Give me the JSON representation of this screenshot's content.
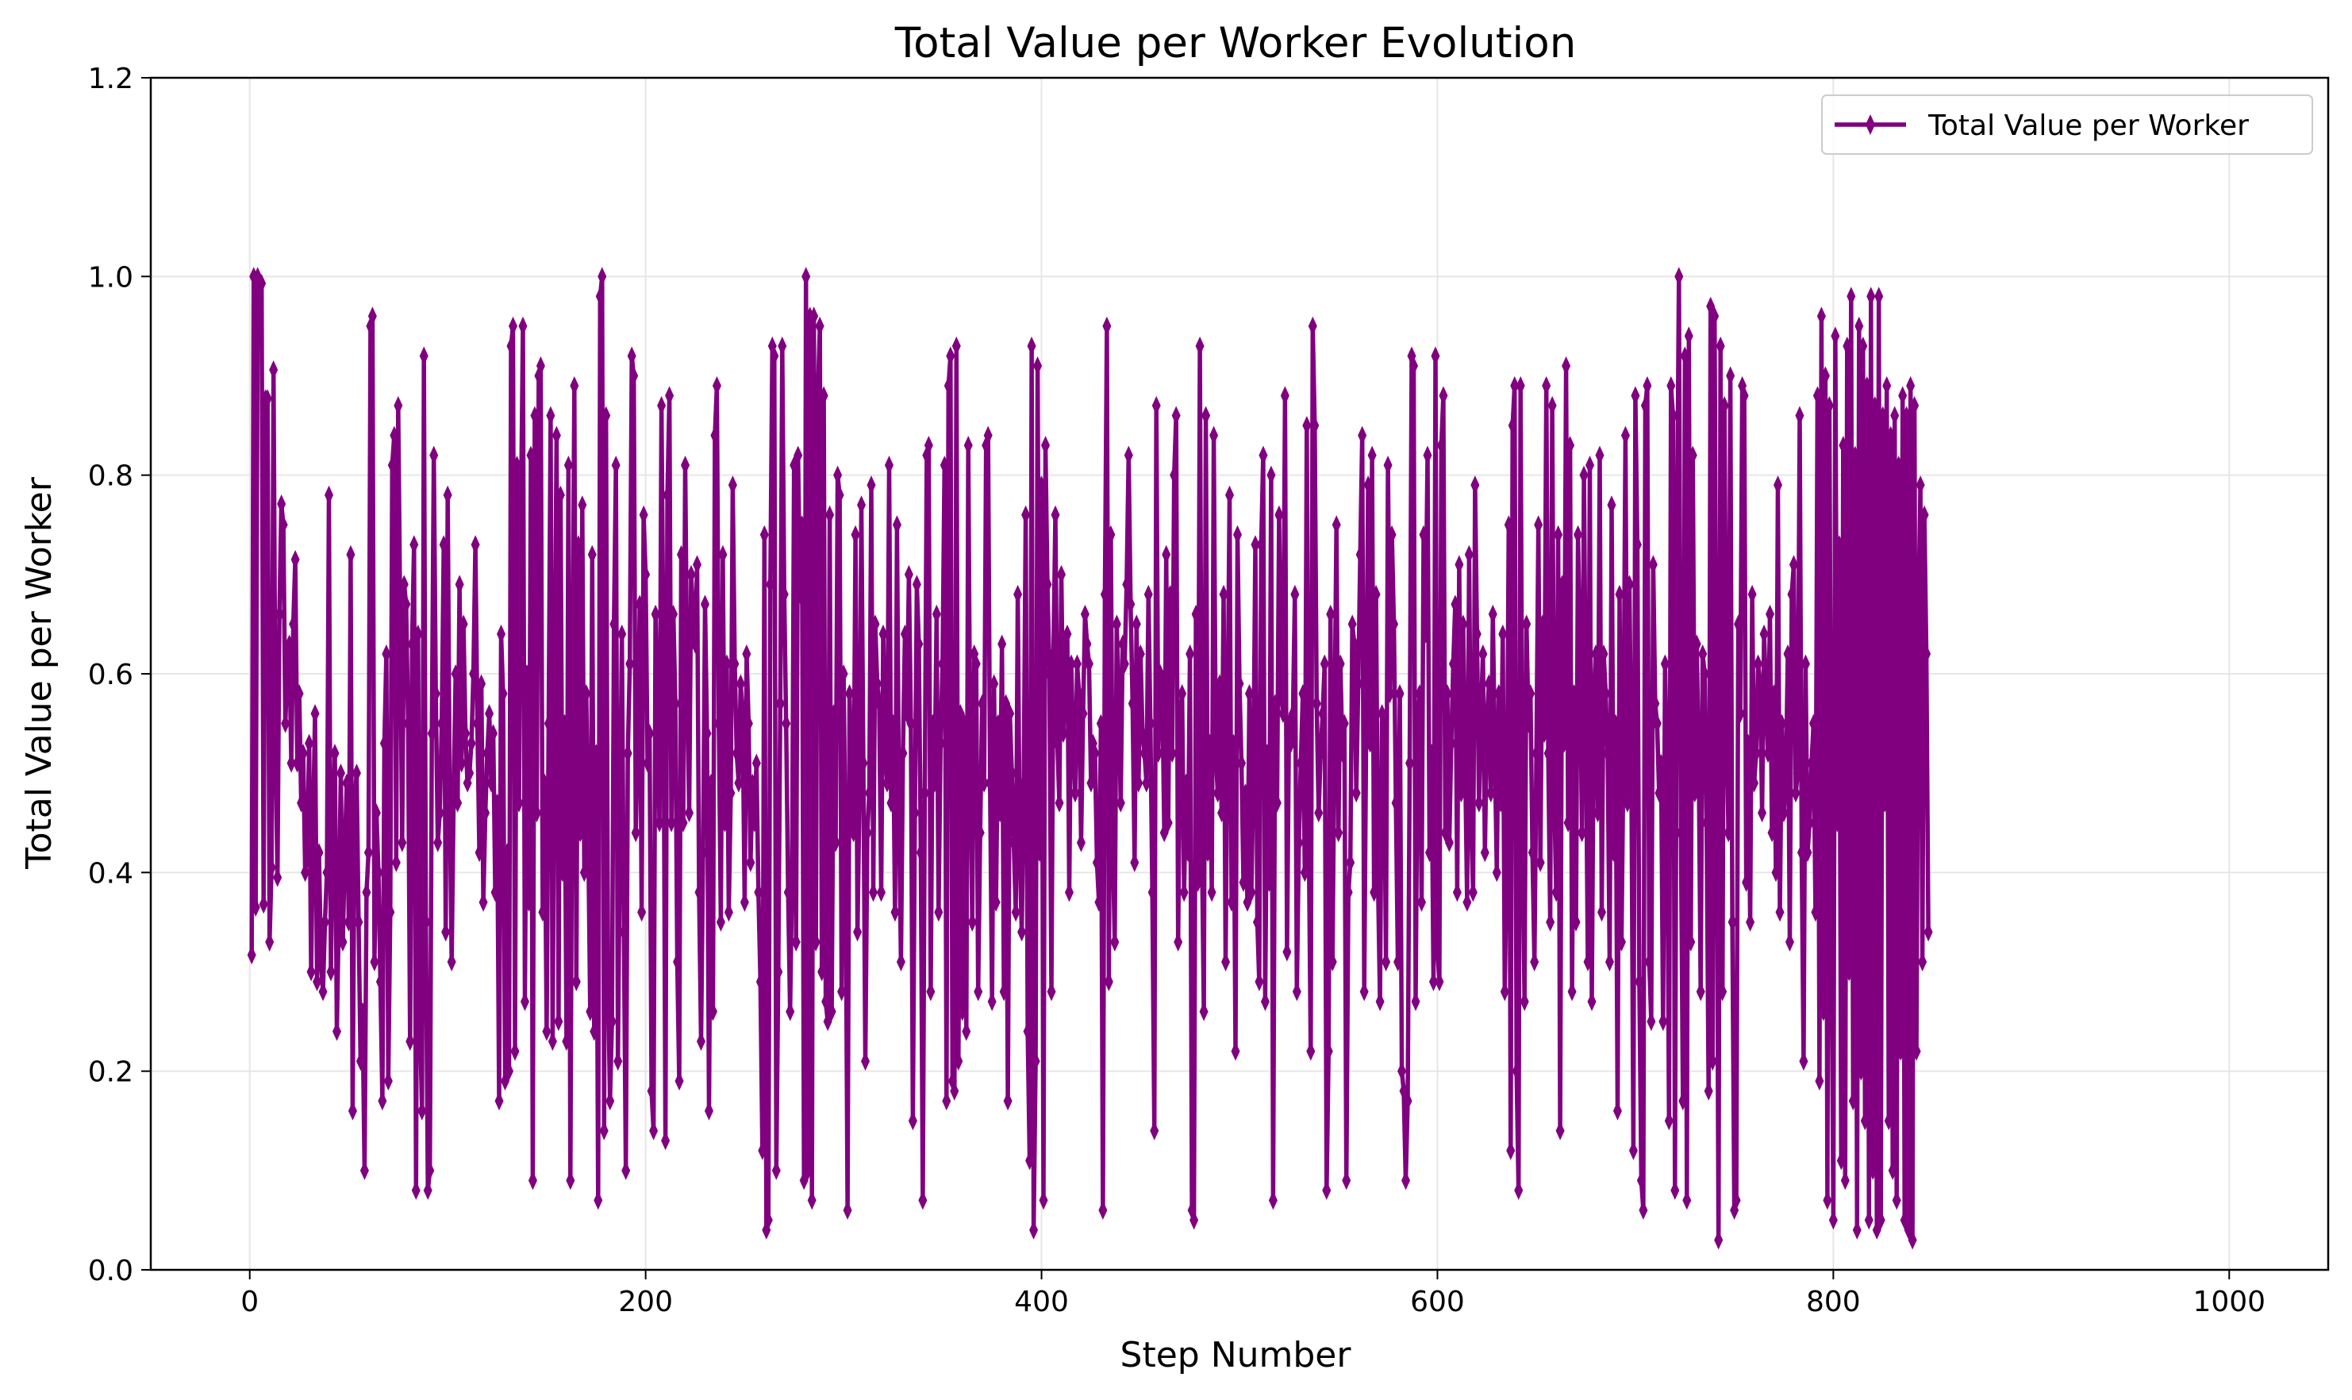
{
  "colors": {
    "series": "#800080",
    "grid": "#e6e6e6",
    "axis": "#000000"
  },
  "chart_data": {
    "type": "line",
    "title": "Total Value per Worker Evolution",
    "xlabel": "Step Number",
    "ylabel": "Total Value per Worker",
    "xlim": [
      -50,
      1050
    ],
    "ylim": [
      0.0,
      1.2
    ],
    "xticks": [
      0,
      200,
      400,
      600,
      800,
      1000
    ],
    "xtick_labels": [
      "0",
      "200",
      "400",
      "600",
      "800",
      "1000"
    ],
    "yticks": [
      0.0,
      0.2,
      0.4,
      0.6,
      0.8,
      1.0,
      1.2
    ],
    "ytick_labels": [
      "0.0",
      "0.2",
      "0.4",
      "0.6",
      "0.8",
      "1.0",
      "1.2"
    ],
    "grid": true,
    "legend_position": "top-right",
    "marker": "thin-diamond",
    "series": [
      {
        "name": "Total Value per Worker",
        "x_start": 1,
        "x_step": 1,
        "values": [
          0.317,
          1.0,
          0.365,
          1.0,
          0.94,
          0.993,
          0.368,
          0.877,
          0.877,
          0.33,
          0.405,
          0.906,
          0.525,
          0.395,
          0.66,
          0.771,
          0.75,
          0.55,
          0.61,
          0.63,
          0.51,
          0.65,
          0.715,
          0.51,
          0.58,
          0.47,
          0.52,
          0.4,
          0.42,
          0.53,
          0.3,
          0.45,
          0.56,
          0.29,
          0.42,
          0.31,
          0.28,
          0.35,
          0.4,
          0.78,
          0.3,
          0.44,
          0.52,
          0.24,
          0.36,
          0.5,
          0.33,
          0.42,
          0.49,
          0.35,
          0.72,
          0.16,
          0.47,
          0.5,
          0.35,
          0.21,
          0.26,
          0.1,
          0.38,
          0.42,
          0.95,
          0.96,
          0.31,
          0.46,
          0.4,
          0.29,
          0.17,
          0.53,
          0.62,
          0.19,
          0.36,
          0.81,
          0.84,
          0.41,
          0.87,
          0.66,
          0.43,
          0.69,
          0.67,
          0.55,
          0.23,
          0.63,
          0.73,
          0.08,
          0.64,
          0.25,
          0.16,
          0.92,
          0.35,
          0.08,
          0.1,
          0.54,
          0.82,
          0.58,
          0.43,
          0.46,
          0.55,
          0.73,
          0.34,
          0.78,
          0.48,
          0.31,
          0.48,
          0.6,
          0.47,
          0.69,
          0.51,
          0.65,
          0.54,
          0.49,
          0.5,
          0.53,
          0.6,
          0.73,
          0.55,
          0.42,
          0.59,
          0.37,
          0.46,
          0.52,
          0.56,
          0.49,
          0.54,
          0.38,
          0.47,
          0.17,
          0.64,
          0.58,
          0.19,
          0.42,
          0.2,
          0.93,
          0.95,
          0.22,
          0.81,
          0.47,
          0.76,
          0.95,
          0.27,
          0.6,
          0.37,
          0.82,
          0.09,
          0.86,
          0.46,
          0.9,
          0.91,
          0.36,
          0.49,
          0.24,
          0.55,
          0.86,
          0.23,
          0.58,
          0.84,
          0.25,
          0.78,
          0.4,
          0.55,
          0.23,
          0.81,
          0.09,
          0.57,
          0.89,
          0.29,
          0.73,
          0.44,
          0.77,
          0.4,
          0.58,
          0.44,
          0.26,
          0.72,
          0.24,
          0.52,
          0.07,
          0.98,
          1.0,
          0.14,
          0.86,
          0.3,
          0.17,
          0.25,
          0.65,
          0.81,
          0.21,
          0.44,
          0.64,
          0.34,
          0.1,
          0.52,
          0.61,
          0.92,
          0.9,
          0.44,
          0.53,
          0.67,
          0.36,
          0.76,
          0.7,
          0.51,
          0.54,
          0.18,
          0.14,
          0.66,
          0.55,
          0.45,
          0.87,
          0.61,
          0.13,
          0.78,
          0.88,
          0.45,
          0.66,
          0.57,
          0.31,
          0.19,
          0.72,
          0.45,
          0.81,
          0.59,
          0.46,
          0.7,
          0.66,
          0.63,
          0.71,
          0.38,
          0.23,
          0.42,
          0.67,
          0.54,
          0.16,
          0.49,
          0.26,
          0.84,
          0.89,
          0.55,
          0.35,
          0.72,
          0.45,
          0.61,
          0.36,
          0.48,
          0.79,
          0.61,
          0.52,
          0.49,
          0.59,
          0.56,
          0.37,
          0.62,
          0.55,
          0.41,
          0.49,
          0.45,
          0.51,
          0.38,
          0.29,
          0.12,
          0.74,
          0.04,
          0.05,
          0.69,
          0.93,
          0.92,
          0.1,
          0.3,
          0.57,
          0.93,
          0.68,
          0.55,
          0.38,
          0.26,
          0.4,
          0.81,
          0.33,
          0.82,
          0.68,
          0.75,
          0.09,
          1.0,
          0.1,
          0.96,
          0.07,
          0.96,
          0.33,
          0.88,
          0.95,
          0.3,
          0.88,
          0.27,
          0.25,
          0.76,
          0.26,
          0.56,
          0.43,
          0.8,
          0.78,
          0.28,
          0.6,
          0.42,
          0.06,
          0.58,
          0.49,
          0.44,
          0.74,
          0.34,
          0.47,
          0.77,
          0.51,
          0.21,
          0.44,
          0.48,
          0.79,
          0.38,
          0.65,
          0.59,
          0.57,
          0.38,
          0.64,
          0.52,
          0.49,
          0.81,
          0.47,
          0.55,
          0.36,
          0.75,
          0.46,
          0.31,
          0.52,
          0.64,
          0.56,
          0.7,
          0.55,
          0.15,
          0.46,
          0.69,
          0.63,
          0.42,
          0.07,
          0.48,
          0.82,
          0.83,
          0.28,
          0.55,
          0.49,
          0.66,
          0.36,
          0.53,
          0.61,
          0.81,
          0.17,
          0.89,
          0.92,
          0.19,
          0.18,
          0.93,
          0.21,
          0.56,
          0.26,
          0.55,
          0.24,
          0.83,
          0.51,
          0.35,
          0.62,
          0.61,
          0.28,
          0.44,
          0.57,
          0.49,
          0.83,
          0.84,
          0.49,
          0.27,
          0.59,
          0.37,
          0.55,
          0.46,
          0.63,
          0.28,
          0.57,
          0.17,
          0.56,
          0.5,
          0.43,
          0.36,
          0.68,
          0.42,
          0.34,
          0.49,
          0.76,
          0.24,
          0.11,
          0.93,
          0.04,
          0.21,
          0.91,
          0.42,
          0.79,
          0.07,
          0.83,
          0.69,
          0.6,
          0.28,
          0.62,
          0.76,
          0.53,
          0.47,
          0.7,
          0.54,
          0.63,
          0.64,
          0.38,
          0.61,
          0.53,
          0.48,
          0.61,
          0.58,
          0.43,
          0.56,
          0.66,
          0.63,
          0.61,
          0.49,
          0.53,
          0.52,
          0.41,
          0.37,
          0.55,
          0.06,
          0.68,
          0.95,
          0.29,
          0.74,
          0.43,
          0.33,
          0.65,
          0.58,
          0.47,
          0.63,
          0.61,
          0.69,
          0.82,
          0.67,
          0.57,
          0.41,
          0.65,
          0.49,
          0.62,
          0.54,
          0.52,
          0.49,
          0.68,
          0.55,
          0.38,
          0.14,
          0.87,
          0.52,
          0.6,
          0.59,
          0.44,
          0.72,
          0.45,
          0.68,
          0.52,
          0.8,
          0.86,
          0.33,
          0.55,
          0.58,
          0.38,
          0.49,
          0.42,
          0.62,
          0.06,
          0.05,
          0.66,
          0.39,
          0.93,
          0.43,
          0.26,
          0.86,
          0.42,
          0.53,
          0.38,
          0.84,
          0.52,
          0.48,
          0.59,
          0.46,
          0.68,
          0.31,
          0.55,
          0.78,
          0.37,
          0.53,
          0.22,
          0.74,
          0.59,
          0.51,
          0.39,
          0.48,
          0.37,
          0.58,
          0.38,
          0.5,
          0.73,
          0.35,
          0.29,
          0.73,
          0.82,
          0.27,
          0.52,
          0.39,
          0.8,
          0.07,
          0.57,
          0.47,
          0.76,
          0.58,
          0.56,
          0.88,
          0.32,
          0.55,
          0.53,
          0.56,
          0.68,
          0.28,
          0.43,
          0.51,
          0.58,
          0.4,
          0.85,
          0.44,
          0.22,
          0.95,
          0.85,
          0.57,
          0.46,
          0.52,
          0.56,
          0.61,
          0.08,
          0.22,
          0.66,
          0.31,
          0.54,
          0.75,
          0.44,
          0.61,
          0.52,
          0.55,
          0.09,
          0.38,
          0.41,
          0.65,
          0.63,
          0.48,
          0.59,
          0.72,
          0.84,
          0.28,
          0.55,
          0.79,
          0.53,
          0.82,
          0.38,
          0.68,
          0.39,
          0.27,
          0.56,
          0.55,
          0.31,
          0.81,
          0.58,
          0.74,
          0.65,
          0.47,
          0.31,
          0.58,
          0.2,
          0.18,
          0.09,
          0.17,
          0.51,
          0.92,
          0.91,
          0.27,
          0.55,
          0.58,
          0.37,
          0.74,
          0.64,
          0.82,
          0.42,
          0.52,
          0.29,
          0.92,
          0.32,
          0.29,
          0.83,
          0.88,
          0.44,
          0.58,
          0.43,
          0.53,
          0.61,
          0.67,
          0.38,
          0.71,
          0.48,
          0.65,
          0.51,
          0.37,
          0.72,
          0.45,
          0.38,
          0.79,
          0.64,
          0.47,
          0.56,
          0.62,
          0.42,
          0.55,
          0.59,
          0.48,
          0.66,
          0.52,
          0.4,
          0.58,
          0.47,
          0.64,
          0.28,
          0.42,
          0.75,
          0.12,
          0.85,
          0.89,
          0.2,
          0.08,
          0.89,
          0.44,
          0.27,
          0.65,
          0.55,
          0.58,
          0.42,
          0.31,
          0.52,
          0.75,
          0.41,
          0.65,
          0.54,
          0.89,
          0.52,
          0.35,
          0.87,
          0.48,
          0.38,
          0.74,
          0.14,
          0.69,
          0.53,
          0.91,
          0.45,
          0.83,
          0.28,
          0.58,
          0.35,
          0.74,
          0.62,
          0.44,
          0.8,
          0.55,
          0.31,
          0.81,
          0.27,
          0.57,
          0.62,
          0.46,
          0.82,
          0.36,
          0.62,
          0.58,
          0.52,
          0.31,
          0.77,
          0.42,
          0.55,
          0.16,
          0.68,
          0.33,
          0.52,
          0.84,
          0.47,
          0.69,
          0.5,
          0.12,
          0.88,
          0.73,
          0.29,
          0.09,
          0.06,
          0.87,
          0.89,
          0.31,
          0.25,
          0.71,
          0.57,
          0.55,
          0.48,
          0.51,
          0.25,
          0.61,
          0.5,
          0.15,
          0.89,
          0.86,
          0.08,
          0.73,
          1.0,
          0.44,
          0.17,
          0.92,
          0.07,
          0.94,
          0.33,
          0.82,
          0.48,
          0.63,
          0.52,
          0.28,
          0.62,
          0.6,
          0.45,
          0.18,
          0.97,
          0.21,
          0.96,
          0.52,
          0.03,
          0.93,
          0.28,
          0.87,
          0.55,
          0.44,
          0.9,
          0.35,
          0.06,
          0.07,
          0.65,
          0.56,
          0.89,
          0.88,
          0.39,
          0.53,
          0.35,
          0.68,
          0.49,
          0.52,
          0.61,
          0.59,
          0.46,
          0.64,
          0.58,
          0.52,
          0.66,
          0.44,
          0.58,
          0.4,
          0.79,
          0.36,
          0.55,
          0.46,
          0.49,
          0.62,
          0.33,
          0.68,
          0.71,
          0.48,
          0.5,
          0.86,
          0.42,
          0.21,
          0.61,
          0.42,
          0.45,
          0.51,
          0.55,
          0.36,
          0.88,
          0.19,
          0.96,
          0.26,
          0.9,
          0.07,
          0.87,
          0.38,
          0.05,
          0.94,
          0.45,
          0.73,
          0.11,
          0.83,
          0.09,
          0.93,
          0.3,
          0.98,
          0.17,
          0.82,
          0.04,
          0.95,
          0.2,
          0.93,
          0.15,
          0.89,
          0.05,
          0.98,
          0.1,
          0.87,
          0.04,
          0.98,
          0.05,
          0.86,
          0.47,
          0.89,
          0.15,
          0.84,
          0.1,
          0.86,
          0.07,
          0.81,
          0.22,
          0.88,
          0.05,
          0.86,
          0.04,
          0.89,
          0.03,
          0.87,
          0.22,
          0.66,
          0.79,
          0.31,
          0.76,
          0.62,
          0.34
        ]
      }
    ]
  }
}
